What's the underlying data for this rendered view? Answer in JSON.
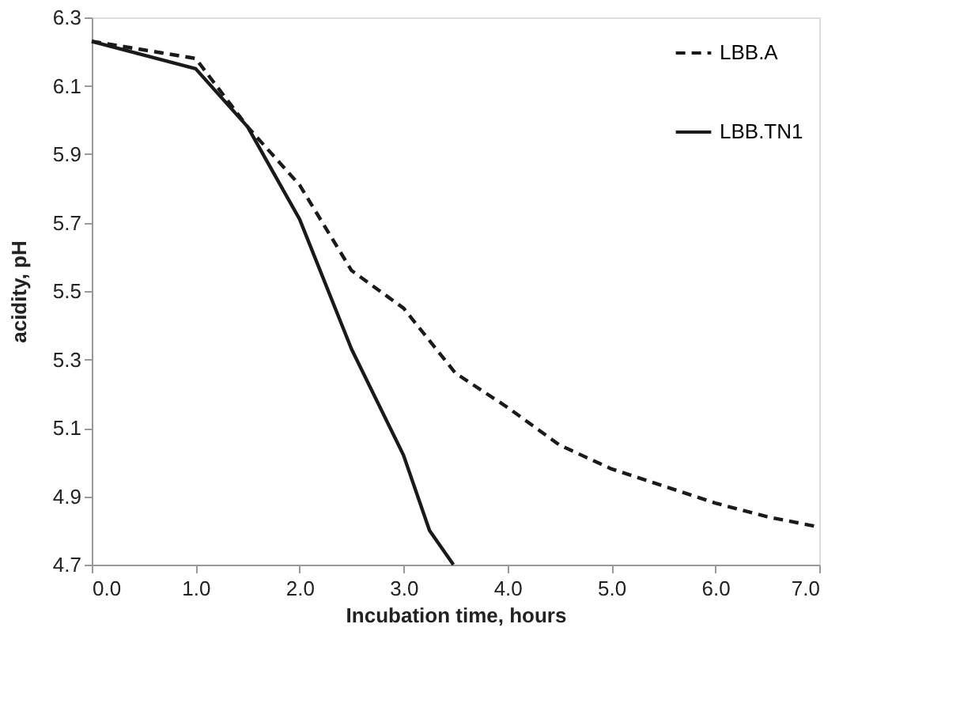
{
  "chart_data": {
    "type": "line",
    "xlabel": "Incubation time, hours",
    "ylabel": "acidity, pH",
    "xlim": [
      0,
      7
    ],
    "xticks": [
      {
        "value": 0,
        "label": "0.0"
      },
      {
        "value": 1,
        "label": "1.0"
      },
      {
        "value": 2,
        "label": "2.0"
      },
      {
        "value": 3,
        "label": "3.0"
      },
      {
        "value": 4,
        "label": "4.0"
      },
      {
        "value": 5,
        "label": "5.0"
      },
      {
        "value": 6,
        "label": "6.0"
      },
      {
        "value": 7,
        "label": "7.0"
      }
    ],
    "ylim": [
      4.7,
      6.3
    ],
    "yticks": [
      4.7,
      4.9,
      5.1,
      5.3,
      5.5,
      5.7,
      5.9,
      6.1,
      6.3
    ],
    "grid": false,
    "legend": "top right",
    "marker": "none",
    "series": [
      {
        "name": "LBB.A",
        "color": "#1a1a1a",
        "line_style": "dashed",
        "x": [
          0,
          1,
          1.5,
          2,
          2.5,
          3,
          3.5,
          4,
          4.5,
          5,
          5.5,
          6,
          6.5,
          7
        ],
        "values": [
          6.23,
          6.18,
          5.98,
          5.81,
          5.56,
          5.45,
          5.26,
          5.16,
          5.05,
          4.98,
          4.93,
          4.88,
          4.84,
          4.81
        ]
      },
      {
        "name": "LBB.TN1",
        "color": "#1a1a1a",
        "line_style": "solid",
        "x": [
          0,
          1,
          1.5,
          2,
          2.5,
          3,
          3.25,
          3.48
        ],
        "values": [
          6.23,
          6.15,
          5.98,
          5.71,
          5.33,
          5.02,
          4.8,
          4.7
        ]
      }
    ]
  }
}
